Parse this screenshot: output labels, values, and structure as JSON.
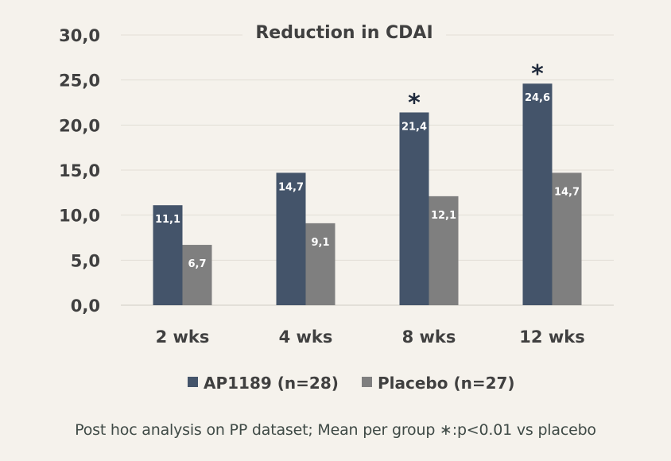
{
  "chart_data": {
    "type": "bar",
    "title": "Reduction in CDAI",
    "categories": [
      "2 wks",
      "4 wks",
      "8 wks",
      "12 wks"
    ],
    "series": [
      {
        "name": "AP1189 (n=28)",
        "values": [
          11.1,
          14.7,
          21.4,
          24.6
        ],
        "labels": [
          "11,1",
          "14,7",
          "21,4",
          "24,6"
        ],
        "color": "#44546a"
      },
      {
        "name": "Placebo (n=27)",
        "values": [
          6.7,
          9.1,
          12.1,
          14.7
        ],
        "labels": [
          "6,7",
          "9,1",
          "12,1",
          "14,7"
        ],
        "color": "#7f7f7f"
      }
    ],
    "significance_marker": "*",
    "significant_categories": [
      "8 wks",
      "12 wks"
    ],
    "ylim": [
      0,
      30
    ],
    "yticks": [
      0,
      5,
      10,
      15,
      20,
      25,
      30
    ],
    "ytick_labels": [
      "0,0",
      "5,0",
      "10,0",
      "15,0",
      "20,0",
      "25,0",
      "30,0"
    ],
    "grid": true,
    "legend_position": "bottom"
  },
  "footnote": "Post hoc analysis on PP dataset; Mean per group ∗:p<0.01 vs placebo"
}
